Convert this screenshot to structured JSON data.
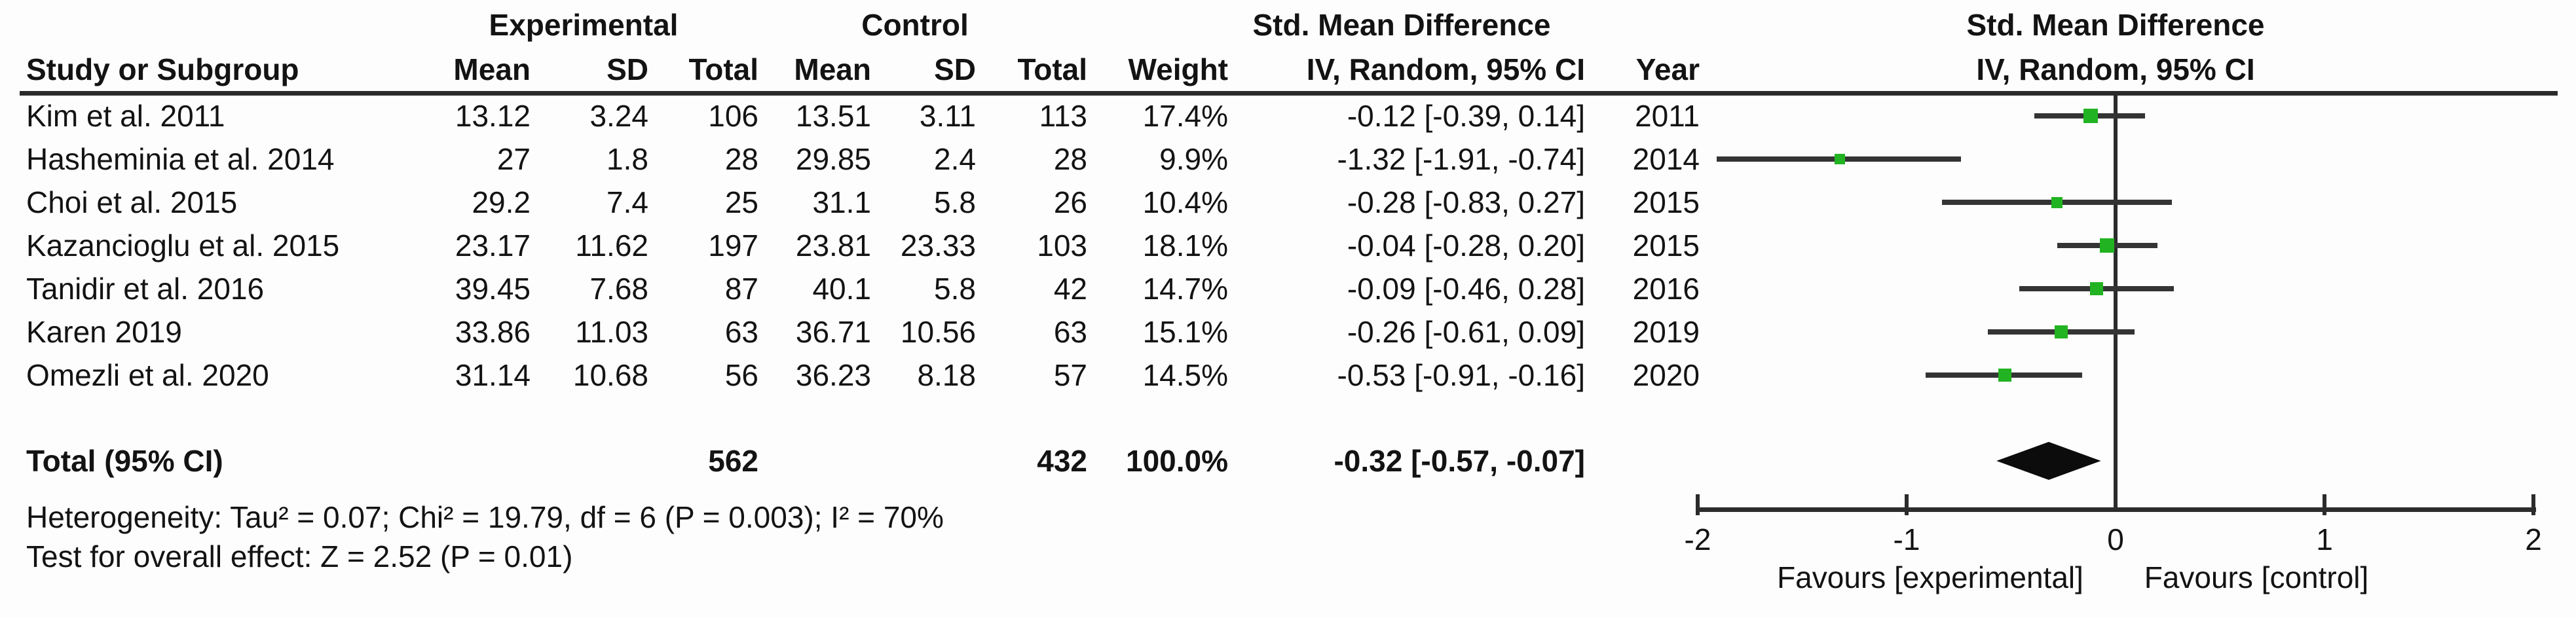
{
  "figure": {
    "background": "#fdfdfd",
    "line_color": "#2b2b2b",
    "square_color": "#22b322",
    "diamond_color": "#0c0c0c"
  },
  "header": {
    "group_experimental": "Experimental",
    "group_control": "Control",
    "smd_title": "Std. Mean Difference",
    "iv_method": "IV, Random, 95% CI"
  },
  "table": {
    "headers": {
      "study": "Study or Subgroup",
      "mean": "Mean",
      "sd": "SD",
      "total": "Total",
      "weight": "Weight",
      "iv": "IV, Random, 95% CI",
      "year": "Year"
    },
    "rows": [
      {
        "name": "Kim et al. 2011",
        "mean_e": "13.12",
        "sd_e": "3.24",
        "total_e": "106",
        "mean_c": "13.51",
        "sd_c": "3.11",
        "total_c": "113",
        "weight": "17.4%",
        "ci": "-0.12 [-0.39, 0.14]",
        "year": "2011"
      },
      {
        "name": "Hasheminia et al. 2014",
        "mean_e": "27",
        "sd_e": "1.8",
        "total_e": "28",
        "mean_c": "29.85",
        "sd_c": "2.4",
        "total_c": "28",
        "weight": "9.9%",
        "ci": "-1.32 [-1.91, -0.74]",
        "year": "2014"
      },
      {
        "name": "Choi et al. 2015",
        "mean_e": "29.2",
        "sd_e": "7.4",
        "total_e": "25",
        "mean_c": "31.1",
        "sd_c": "5.8",
        "total_c": "26",
        "weight": "10.4%",
        "ci": "-0.28 [-0.83, 0.27]",
        "year": "2015"
      },
      {
        "name": "Kazancioglu et al. 2015",
        "mean_e": "23.17",
        "sd_e": "11.62",
        "total_e": "197",
        "mean_c": "23.81",
        "sd_c": "23.33",
        "total_c": "103",
        "weight": "18.1%",
        "ci": "-0.04 [-0.28, 0.20]",
        "year": "2015"
      },
      {
        "name": "Tanidir et al. 2016",
        "mean_e": "39.45",
        "sd_e": "7.68",
        "total_e": "87",
        "mean_c": "40.1",
        "sd_c": "5.8",
        "total_c": "42",
        "weight": "14.7%",
        "ci": "-0.09 [-0.46, 0.28]",
        "year": "2016"
      },
      {
        "name": "Karen 2019",
        "mean_e": "33.86",
        "sd_e": "11.03",
        "total_e": "63",
        "mean_c": "36.71",
        "sd_c": "10.56",
        "total_c": "63",
        "weight": "15.1%",
        "ci": "-0.26 [-0.61, 0.09]",
        "year": "2019"
      },
      {
        "name": "Omezli et al. 2020",
        "mean_e": "31.14",
        "sd_e": "10.68",
        "total_e": "56",
        "mean_c": "36.23",
        "sd_c": "8.18",
        "total_c": "57",
        "weight": "14.5%",
        "ci": "-0.53 [-0.91, -0.16]",
        "year": "2020"
      }
    ],
    "total": {
      "label": "Total (95% CI)",
      "total_e": "562",
      "total_c": "432",
      "weight": "100.0%",
      "ci": "-0.32 [-0.57, -0.07]"
    }
  },
  "footer": {
    "heterogeneity": "Heterogeneity: Tau² = 0.07; Chi² = 19.79, df = 6 (P = 0.003); I² = 70%",
    "overall_effect": "Test for overall effect: Z = 2.52 (P = 0.01)"
  },
  "chart_data": {
    "type": "scatter",
    "variant": "forest-plot",
    "title": "Std. Mean Difference",
    "subtitle": "IV, Random, 95% CI",
    "xlim": [
      -2,
      2
    ],
    "ticks": [
      -2,
      -1,
      0,
      1,
      2
    ],
    "favours_left": "Favours [experimental]",
    "favours_right": "Favours [control]",
    "points": [
      {
        "label": "Kim et al. 2011",
        "x": -0.12,
        "lo": -0.39,
        "hi": 0.14,
        "weight": 17.4
      },
      {
        "label": "Hasheminia et al. 2014",
        "x": -1.32,
        "lo": -1.91,
        "hi": -0.74,
        "weight": 9.9
      },
      {
        "label": "Choi et al. 2015",
        "x": -0.28,
        "lo": -0.83,
        "hi": 0.27,
        "weight": 10.4
      },
      {
        "label": "Kazancioglu et al. 2015",
        "x": -0.04,
        "lo": -0.28,
        "hi": 0.2,
        "weight": 18.1
      },
      {
        "label": "Tanidir et al. 2016",
        "x": -0.09,
        "lo": -0.46,
        "hi": 0.28,
        "weight": 14.7
      },
      {
        "label": "Karen 2019",
        "x": -0.26,
        "lo": -0.61,
        "hi": 0.09,
        "weight": 15.1
      },
      {
        "label": "Omezli et al. 2020",
        "x": -0.53,
        "lo": -0.91,
        "hi": -0.16,
        "weight": 14.5
      }
    ],
    "diamond": {
      "x": -0.32,
      "lo": -0.57,
      "hi": -0.07,
      "weight": 100.0
    }
  }
}
